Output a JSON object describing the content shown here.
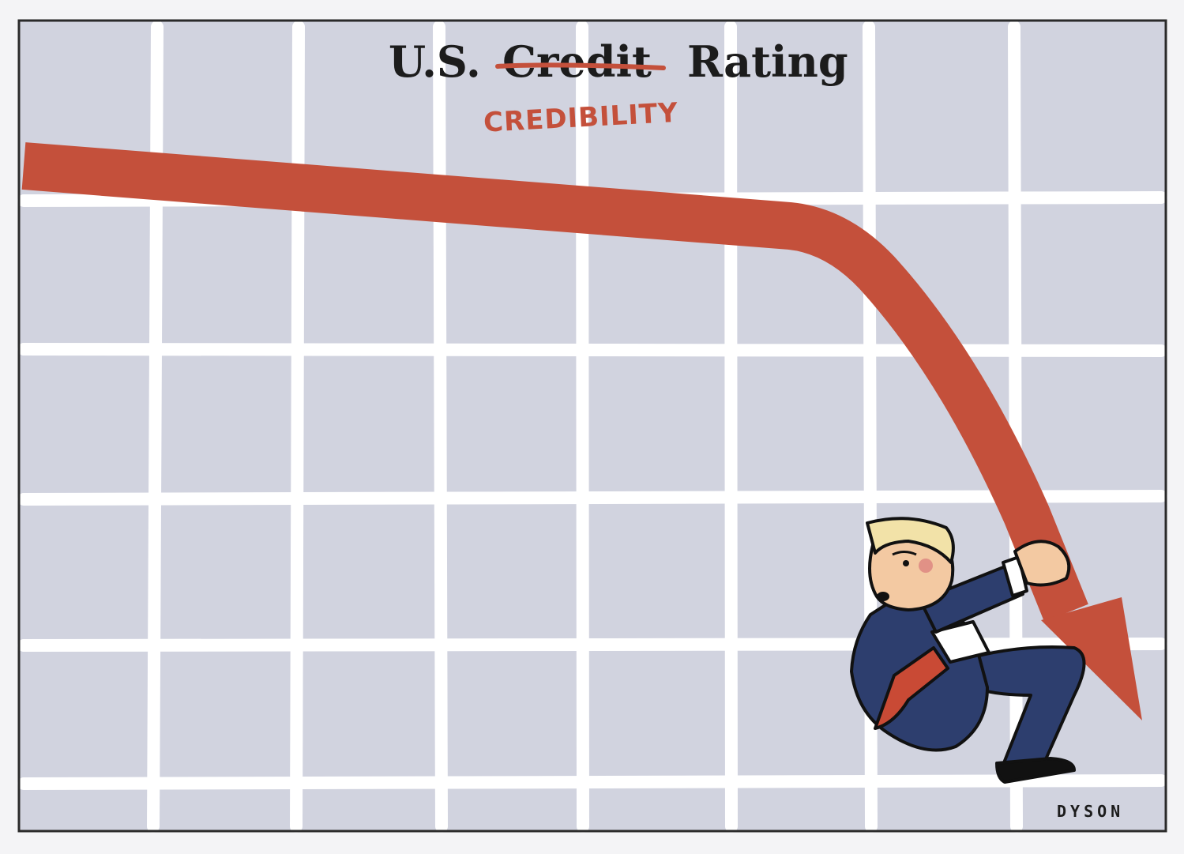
{
  "title": {
    "prefix": "U.S.",
    "struck_word": "Credit",
    "suffix": "Rating",
    "handwritten_correction": "CREDIBILITY"
  },
  "signature": "DYSON",
  "colors": {
    "panel_bg": "#d1d3df",
    "grid_lines": "#ffffff",
    "arrow": "#c4503b",
    "frame": "#2a2a2a",
    "suit": "#2d3e6e",
    "tie": "#c94a35",
    "skin": "#f3c9a2",
    "hair": "#f2e2a8"
  }
}
